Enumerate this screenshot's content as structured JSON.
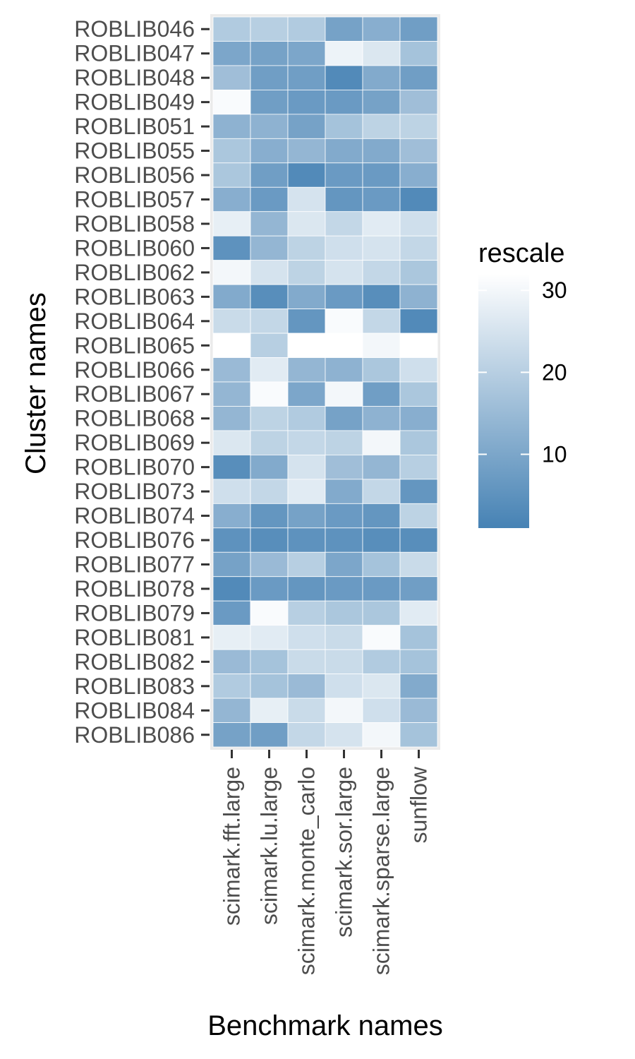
{
  "chart_data": {
    "type": "heatmap",
    "xlabel": "Benchmark names",
    "ylabel": "Cluster names",
    "x_categories": [
      "scimark.fft.large",
      "scimark.lu.large",
      "scimark.monte_carlo",
      "scimark.sor.large",
      "scimark.sparse.large",
      "sunflow"
    ],
    "y_categories": [
      "ROBLIB046",
      "ROBLIB047",
      "ROBLIB048",
      "ROBLIB049",
      "ROBLIB051",
      "ROBLIB055",
      "ROBLIB056",
      "ROBLIB057",
      "ROBLIB058",
      "ROBLIB060",
      "ROBLIB062",
      "ROBLIB063",
      "ROBLIB064",
      "ROBLIB065",
      "ROBLIB066",
      "ROBLIB067",
      "ROBLIB068",
      "ROBLIB069",
      "ROBLIB070",
      "ROBLIB073",
      "ROBLIB074",
      "ROBLIB076",
      "ROBLIB077",
      "ROBLIB078",
      "ROBLIB079",
      "ROBLIB081",
      "ROBLIB082",
      "ROBLIB083",
      "ROBLIB084",
      "ROBLIB086"
    ],
    "values": [
      [
        19,
        20,
        19,
        9,
        12,
        8
      ],
      [
        10,
        9,
        10,
        29,
        26,
        17
      ],
      [
        16,
        8,
        8,
        3,
        11,
        8
      ],
      [
        31,
        8,
        7,
        7,
        9,
        16
      ],
      [
        13,
        13,
        9,
        17,
        21,
        21
      ],
      [
        18,
        12,
        14,
        11,
        11,
        16
      ],
      [
        18,
        8,
        3,
        7,
        7,
        12
      ],
      [
        12,
        7,
        25,
        6,
        7,
        3
      ],
      [
        28,
        14,
        26,
        22,
        27,
        24
      ],
      [
        5,
        14,
        21,
        24,
        25,
        22
      ],
      [
        30,
        25,
        21,
        25,
        22,
        18
      ],
      [
        11,
        4,
        11,
        7,
        4,
        13
      ],
      [
        23,
        22,
        6,
        31,
        22,
        3
      ],
      [
        32,
        20,
        32,
        32,
        30,
        32
      ],
      [
        15,
        27,
        14,
        13,
        18,
        24
      ],
      [
        14,
        31,
        10,
        30,
        8,
        18
      ],
      [
        14,
        21,
        19,
        9,
        13,
        12
      ],
      [
        26,
        21,
        22,
        21,
        30,
        18
      ],
      [
        4,
        11,
        25,
        16,
        14,
        20
      ],
      [
        24,
        22,
        27,
        11,
        22,
        6
      ],
      [
        12,
        6,
        9,
        7,
        6,
        21
      ],
      [
        5,
        4,
        5,
        5,
        4,
        4
      ],
      [
        9,
        15,
        20,
        10,
        17,
        23
      ],
      [
        3,
        7,
        6,
        7,
        7,
        8
      ],
      [
        7,
        31,
        20,
        18,
        18,
        27
      ],
      [
        28,
        27,
        24,
        23,
        31,
        17
      ],
      [
        15,
        17,
        23,
        23,
        19,
        17
      ],
      [
        19,
        17,
        15,
        24,
        26,
        11
      ],
      [
        14,
        28,
        23,
        30,
        24,
        15
      ],
      [
        9,
        8,
        22,
        25,
        30,
        17
      ]
    ],
    "legend": {
      "title": "rescale",
      "position": "right",
      "breaks": [
        10,
        20,
        30
      ],
      "min": 1,
      "max": 32,
      "low_color": "#4682b4",
      "high_color": "#ffffff"
    },
    "panel_background": "#ebebeb",
    "grid": true
  }
}
